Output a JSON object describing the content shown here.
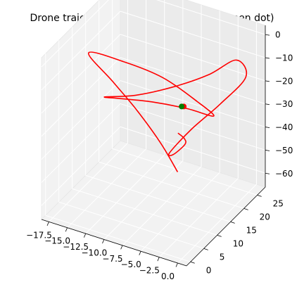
{
  "chart_data": {
    "type": "line",
    "projection": "3d",
    "title": "Drone trajectories (red path) to origin (green dot)",
    "xlabel": "",
    "ylabel": "",
    "zlabel": "",
    "grid": true,
    "x_ticks": [
      "−17.5",
      "−15.0",
      "−12.5",
      "−10.0",
      "−7.5",
      "−5.0",
      "−2.5",
      "0.0"
    ],
    "y_ticks": [
      "0",
      "5",
      "10",
      "15",
      "20",
      "25"
    ],
    "z_ticks": [
      "0",
      "−10",
      "−20",
      "−30",
      "−40",
      "−50",
      "−60"
    ],
    "series": [
      {
        "color": "#ff0000",
        "x": [
          -2.0,
          -5.0,
          -9.0,
          -13.0,
          -17.0,
          -13.0,
          -8.0,
          -3.0,
          0.0,
          -4.0,
          -9.5,
          -14.5,
          -17.0,
          -13.5,
          -9.0,
          -5.0,
          -2.0,
          0.0,
          -2.0,
          -4.5,
          -6.0,
          -4.0,
          -1.0,
          0.0,
          -0.5
        ],
        "y": [
          4.0,
          6.0,
          8.0,
          10.0,
          12.0,
          14.0,
          15.0,
          14.0,
          12.0,
          13.0,
          15.0,
          17.0,
          18.0,
          20.0,
          22.0,
          24.0,
          26.0,
          24.0,
          20.0,
          16.0,
          12.0,
          8.0,
          4.0,
          1.0,
          0.0
        ],
        "z": [
          -35.0,
          -28.0,
          -20.0,
          -14.0,
          -8.0,
          -10.0,
          -13.0,
          -17.0,
          -18.0,
          -20.0,
          -25.0,
          -31.0,
          -34.0,
          -32.0,
          -26.0,
          -19.0,
          -12.0,
          -15.0,
          -24.0,
          -33.0,
          -40.0,
          -34.0,
          -22.0,
          -15.0,
          -12.0
        ]
      }
    ],
    "markers": [
      {
        "color": "#ff0000",
        "x": 0.0,
        "y": 0.0,
        "z": 0.0
      },
      {
        "color": "#008000",
        "x": 0.0,
        "y": 0.0,
        "z": 0.0
      }
    ]
  }
}
